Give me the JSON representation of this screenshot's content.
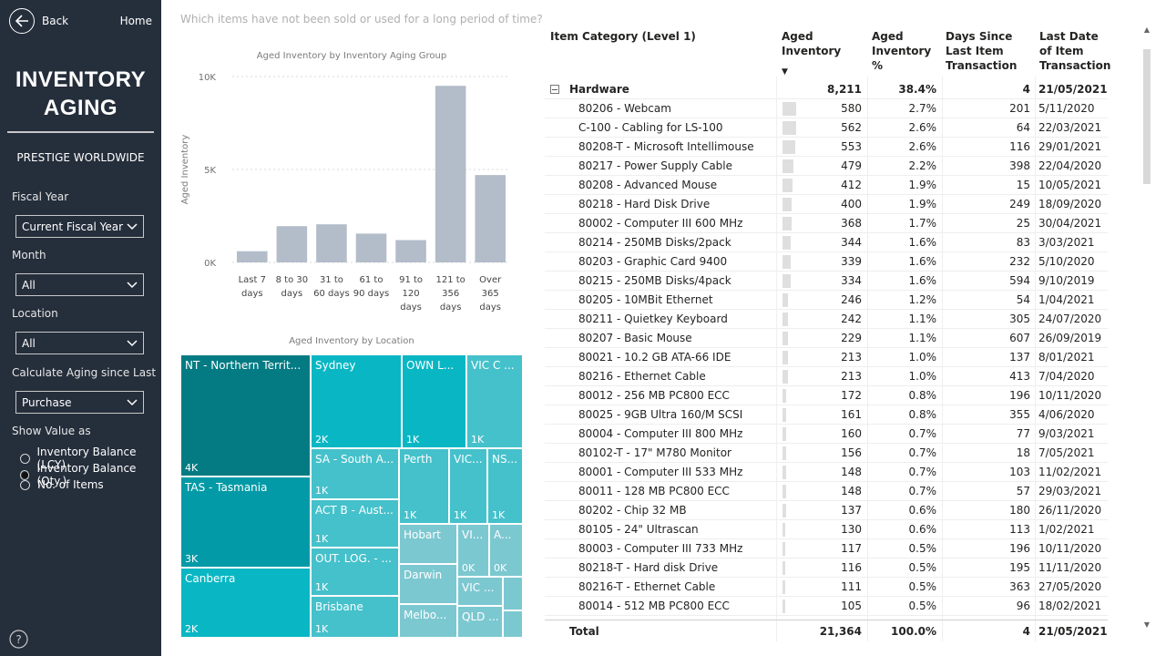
{
  "nav": {
    "back_label": "Back",
    "home_label": "Home"
  },
  "sidebar": {
    "title_line1": "INVENTORY",
    "title_line2": "AGING",
    "company": "PRESTIGE WORLDWIDE",
    "filters": [
      {
        "label": "Fiscal Year",
        "value": "Current Fiscal Year"
      },
      {
        "label": "Month",
        "value": "All"
      },
      {
        "label": "Location",
        "value": "All"
      },
      {
        "label": "Calculate Aging since Last",
        "value": "Purchase"
      }
    ],
    "show_value_label": "Show Value as",
    "show_value_options": [
      {
        "label": "Inventory Balance (LCY)",
        "selected": false
      },
      {
        "label": "Inventory Balance (Qty.)",
        "selected": true
      },
      {
        "label": "No. of Items",
        "selected": false
      }
    ],
    "help_icon": "question-icon"
  },
  "question_text": "Which items have not been sold or used for a long period of time?",
  "colors": {
    "sidebar_bg": "#252e3b",
    "bar": "#b3bcc9",
    "tm_dark": "#047b83",
    "tm_mid": "#029aa6",
    "tm_light": "#09b7c4",
    "tm_lighter": "#45c1cb",
    "tm_pale": "#7cc8d1"
  },
  "chart_data": [
    {
      "type": "bar",
      "title": "Aged Inventory by Inventory Aging Group",
      "ylabel": "Aged Inventory",
      "xlabel": "",
      "categories": [
        "Last 7 days",
        "8 to 30 days",
        "31 to 60 days",
        "61 to 90 days",
        "91 to 120 days",
        "121 to 356 days",
        "Over 365 days"
      ],
      "category_lines": [
        [
          "Last 7",
          "days"
        ],
        [
          "8 to 30",
          "days"
        ],
        [
          "31 to",
          "60 days"
        ],
        [
          "61 to",
          "90 days"
        ],
        [
          "91 to",
          "120",
          "days"
        ],
        [
          "121 to",
          "356",
          "days"
        ],
        [
          "Over",
          "365",
          "days"
        ]
      ],
      "values": [
        600,
        1950,
        2050,
        1550,
        1200,
        9500,
        4700
      ],
      "ylim": [
        0,
        10000
      ],
      "yticks": [
        0,
        5000,
        10000
      ],
      "ytick_labels": [
        "0K",
        "5K",
        "10K"
      ],
      "grid": true
    },
    {
      "type": "treemap",
      "title": "Aged Inventory by Location",
      "items": [
        {
          "name": "NT - Northern Territ...",
          "value_label": "4K",
          "shade": "tm_dark"
        },
        {
          "name": "TAS - Tasmania",
          "value_label": "3K",
          "shade": "tm_mid"
        },
        {
          "name": "Canberra",
          "value_label": "2K",
          "shade": "tm_light"
        },
        {
          "name": "Sydney",
          "value_label": "2K",
          "shade": "tm_light"
        },
        {
          "name": "OWN L...",
          "value_label": "1K",
          "shade": "tm_light"
        },
        {
          "name": "VIC C ...",
          "value_label": "1K",
          "shade": "tm_lighter"
        },
        {
          "name": "SA - South A...",
          "value_label": "1K",
          "shade": "tm_lighter"
        },
        {
          "name": "ACT B - Aust...",
          "value_label": "1K",
          "shade": "tm_lighter"
        },
        {
          "name": "OUT. LOG. - ...",
          "value_label": "1K",
          "shade": "tm_lighter"
        },
        {
          "name": "Brisbane",
          "value_label": "1K",
          "shade": "tm_lighter"
        },
        {
          "name": "Perth",
          "value_label": "1K",
          "shade": "tm_lighter"
        },
        {
          "name": "VIC...",
          "value_label": "1K",
          "shade": "tm_lighter"
        },
        {
          "name": "NS...",
          "value_label": "1K",
          "shade": "tm_lighter"
        },
        {
          "name": "Hobart",
          "value_label": "",
          "shade": "tm_pale"
        },
        {
          "name": "VI...",
          "value_label": "0K",
          "shade": "tm_pale"
        },
        {
          "name": "A...",
          "value_label": "0K",
          "shade": "tm_pale"
        },
        {
          "name": "Darwin",
          "value_label": "",
          "shade": "tm_pale"
        },
        {
          "name": "VIC ...",
          "value_label": "",
          "shade": "tm_pale"
        },
        {
          "name": "Melbo...",
          "value_label": "",
          "shade": "tm_pale"
        },
        {
          "name": "QLD ...",
          "value_label": "",
          "shade": "tm_pale"
        },
        {
          "name": "",
          "value_label": "",
          "shade": "tm_pale"
        },
        {
          "name": "",
          "value_label": "",
          "shade": "tm_pale"
        }
      ]
    }
  ],
  "table": {
    "headers": [
      "Item Category (Level 1)",
      "Aged Inventory",
      "Aged Inventory %",
      "Days Since Last Item Transaction",
      "Last Date of Item Transaction"
    ],
    "sort_icon": "sort-desc-icon",
    "group": {
      "name": "Hardware",
      "aged": "8,211",
      "pct": "38.4%",
      "days": "4",
      "date": "21/05/2021"
    },
    "rows": [
      {
        "name": "80206 - Webcam",
        "aged": "580",
        "aged_value": 580,
        "pct": "2.7%",
        "days": "201",
        "date": "5/11/2020"
      },
      {
        "name": "C-100 - Cabling for LS-100",
        "aged": "562",
        "aged_value": 562,
        "pct": "2.6%",
        "days": "64",
        "date": "22/03/2021"
      },
      {
        "name": "80208-T - Microsoft Intellimouse",
        "aged": "553",
        "aged_value": 553,
        "pct": "2.6%",
        "days": "116",
        "date": "29/01/2021"
      },
      {
        "name": "80217 - Power Supply Cable",
        "aged": "479",
        "aged_value": 479,
        "pct": "2.2%",
        "days": "398",
        "date": "22/04/2020"
      },
      {
        "name": "80208 - Advanced Mouse",
        "aged": "412",
        "aged_value": 412,
        "pct": "1.9%",
        "days": "15",
        "date": "10/05/2021"
      },
      {
        "name": "80218 - Hard Disk Drive",
        "aged": "400",
        "aged_value": 400,
        "pct": "1.9%",
        "days": "249",
        "date": "18/09/2020"
      },
      {
        "name": "80002 - Computer III 600 MHz",
        "aged": "368",
        "aged_value": 368,
        "pct": "1.7%",
        "days": "25",
        "date": "30/04/2021"
      },
      {
        "name": "80214 - 250MB Disks/2pack",
        "aged": "344",
        "aged_value": 344,
        "pct": "1.6%",
        "days": "83",
        "date": "3/03/2021"
      },
      {
        "name": "80203 - Graphic Card 9400",
        "aged": "339",
        "aged_value": 339,
        "pct": "1.6%",
        "days": "232",
        "date": "5/10/2020"
      },
      {
        "name": "80215 - 250MB Disks/4pack",
        "aged": "334",
        "aged_value": 334,
        "pct": "1.6%",
        "days": "594",
        "date": "9/10/2019"
      },
      {
        "name": "80205 - 10MBit Ethernet",
        "aged": "246",
        "aged_value": 246,
        "pct": "1.2%",
        "days": "54",
        "date": "1/04/2021"
      },
      {
        "name": "80211 - Quietkey Keyboard",
        "aged": "242",
        "aged_value": 242,
        "pct": "1.1%",
        "days": "305",
        "date": "24/07/2020"
      },
      {
        "name": "80207 - Basic Mouse",
        "aged": "229",
        "aged_value": 229,
        "pct": "1.1%",
        "days": "607",
        "date": "26/09/2019"
      },
      {
        "name": "80021 - 10.2 GB ATA-66 IDE",
        "aged": "213",
        "aged_value": 213,
        "pct": "1.0%",
        "days": "137",
        "date": "8/01/2021"
      },
      {
        "name": "80216 - Ethernet Cable",
        "aged": "213",
        "aged_value": 213,
        "pct": "1.0%",
        "days": "413",
        "date": "7/04/2020"
      },
      {
        "name": "80012 - 256 MB PC800 ECC",
        "aged": "172",
        "aged_value": 172,
        "pct": "0.8%",
        "days": "196",
        "date": "10/11/2020"
      },
      {
        "name": "80025 - 9GB Ultra 160/M SCSI",
        "aged": "161",
        "aged_value": 161,
        "pct": "0.8%",
        "days": "355",
        "date": "4/06/2020"
      },
      {
        "name": "80004 - Computer III 800 MHz",
        "aged": "160",
        "aged_value": 160,
        "pct": "0.7%",
        "days": "77",
        "date": "9/03/2021"
      },
      {
        "name": "80102-T - 17\" M780 Monitor",
        "aged": "156",
        "aged_value": 156,
        "pct": "0.7%",
        "days": "18",
        "date": "7/05/2021"
      },
      {
        "name": "80001 - Computer III 533 MHz",
        "aged": "148",
        "aged_value": 148,
        "pct": "0.7%",
        "days": "103",
        "date": "11/02/2021"
      },
      {
        "name": "80011 - 128 MB PC800 ECC",
        "aged": "148",
        "aged_value": 148,
        "pct": "0.7%",
        "days": "57",
        "date": "29/03/2021"
      },
      {
        "name": "80202 - Chip 32 MB",
        "aged": "137",
        "aged_value": 137,
        "pct": "0.6%",
        "days": "180",
        "date": "26/11/2020"
      },
      {
        "name": "80105 - 24\" Ultrascan",
        "aged": "130",
        "aged_value": 130,
        "pct": "0.6%",
        "days": "113",
        "date": "1/02/2021"
      },
      {
        "name": "80003 - Computer III 733 MHz",
        "aged": "117",
        "aged_value": 117,
        "pct": "0.5%",
        "days": "196",
        "date": "10/11/2020"
      },
      {
        "name": "80218-T - Hard disk Drive",
        "aged": "116",
        "aged_value": 116,
        "pct": "0.5%",
        "days": "195",
        "date": "11/11/2020"
      },
      {
        "name": "80216-T - Ethernet Cable",
        "aged": "111",
        "aged_value": 111,
        "pct": "0.5%",
        "days": "363",
        "date": "27/05/2020"
      },
      {
        "name": "80014 - 512 MB PC800 ECC",
        "aged": "105",
        "aged_value": 105,
        "pct": "0.5%",
        "days": "96",
        "date": "18/02/2021"
      }
    ],
    "total": {
      "name": "Total",
      "aged": "21,364",
      "pct": "100.0%",
      "days": "4",
      "date": "21/05/2021"
    }
  }
}
